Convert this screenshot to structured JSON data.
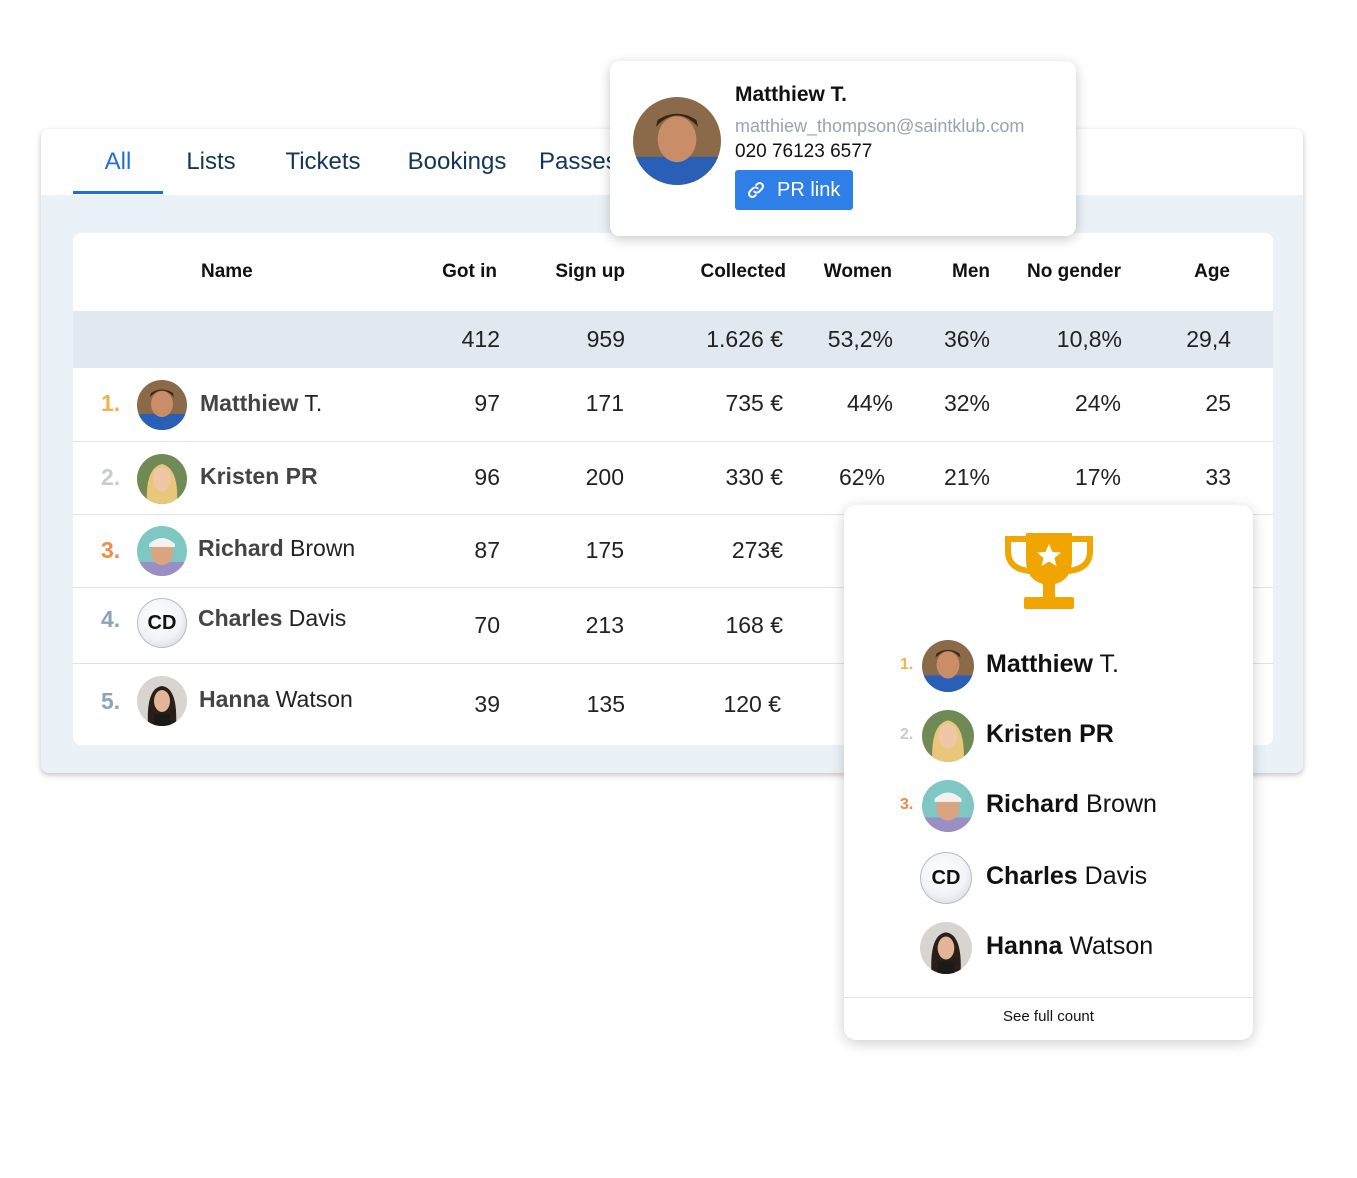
{
  "tabs": [
    {
      "label": "All",
      "active": true
    },
    {
      "label": "Lists"
    },
    {
      "label": "Tickets"
    },
    {
      "label": "Bookings"
    },
    {
      "label": "Passes"
    }
  ],
  "table": {
    "headers": [
      "Name",
      "Got in",
      "Sign up",
      "Collected",
      "Women",
      "Men",
      "No gender",
      "Age"
    ],
    "totals": [
      "412",
      "959",
      "1.626 €",
      "53,2%",
      "36%",
      "10,8%",
      "29,4"
    ],
    "rows": [
      {
        "rank": "1.",
        "first": "Matthiew",
        "last": "T.",
        "got_in": "97",
        "sign_up": "171",
        "collected": "735 €",
        "women": "44%",
        "men": "32%",
        "no_gender": "24%",
        "age": "25"
      },
      {
        "rank": "2.",
        "first": "Kristen PR",
        "last": "",
        "got_in": "96",
        "sign_up": "200",
        "collected": "330 €",
        "women": "62%",
        "men": "21%",
        "no_gender": "17%",
        "age": "33"
      },
      {
        "rank": "3.",
        "first": "Richard",
        "last": "Brown",
        "got_in": "87",
        "sign_up": "175",
        "collected": "273€"
      },
      {
        "rank": "4.",
        "first": "Charles",
        "last": "Davis",
        "initials": "CD",
        "got_in": "70",
        "sign_up": "213",
        "collected": "168 €"
      },
      {
        "rank": "5.",
        "first": "Hanna",
        "last": "Watson",
        "got_in": "39",
        "sign_up": "135",
        "collected": "120 €"
      }
    ]
  },
  "profile": {
    "name": "Matthiew T.",
    "email": "matthiew_thompson@saintklub.com",
    "phone": "020 76123 6577",
    "button_label": "PR link",
    "icon": "link-icon"
  },
  "leaderboard": {
    "icon": "trophy-icon",
    "items": [
      {
        "rank": "1.",
        "first": "Matthiew",
        "last": "T."
      },
      {
        "rank": "2.",
        "first": "Kristen PR",
        "last": ""
      },
      {
        "rank": "3.",
        "first": "Richard",
        "last": "Brown"
      },
      {
        "rank": "",
        "first": "Charles",
        "last": "Davis",
        "initials": "CD"
      },
      {
        "rank": "",
        "first": "Hanna",
        "last": "Watson"
      }
    ],
    "footer": "See full count"
  },
  "colors": {
    "accent": "#1e6fdc",
    "rank1": "#f0b44c",
    "rank2": "#c8ccd2",
    "rank3": "#f08a4b",
    "rank_other": "#8aa4b8",
    "trophy": "#f0a500",
    "button": "#2f7fe8"
  }
}
